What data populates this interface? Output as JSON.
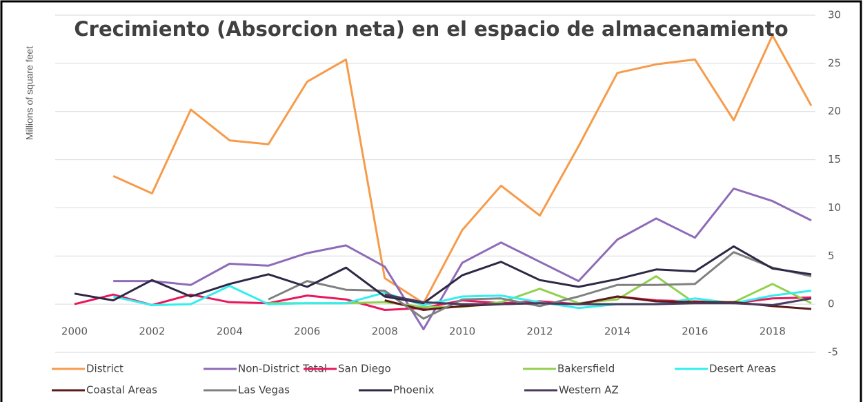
{
  "chart_data": {
    "type": "line",
    "title": "Crecimiento (Absorcion neta) en el espacio de almacenamiento",
    "y_label": "Millions of square feet",
    "x": [
      2000,
      2001,
      2002,
      2003,
      2004,
      2005,
      2006,
      2007,
      2008,
      2009,
      2010,
      2011,
      2012,
      2013,
      2014,
      2015,
      2016,
      2017,
      2018,
      2019
    ],
    "xlim": [
      2000,
      2019
    ],
    "xticks": [
      2000,
      2002,
      2004,
      2006,
      2008,
      2010,
      2012,
      2014,
      2016,
      2018
    ],
    "ylim": [
      -5,
      30
    ],
    "yticks": [
      -5,
      0,
      5,
      10,
      15,
      20,
      25,
      30
    ],
    "grid": true,
    "legend": "bottom",
    "series": [
      {
        "name": "District",
        "color": "#f79b4a",
        "values": [
          null,
          13.3,
          11.5,
          20.2,
          17.0,
          16.6,
          23.1,
          25.4,
          2.7,
          0.1,
          7.7,
          12.3,
          9.2,
          16.4,
          24.0,
          24.9,
          25.4,
          19.1,
          27.9,
          20.6
        ]
      },
      {
        "name": "Non-District Total",
        "color": "#8e6bb8",
        "values": [
          null,
          2.4,
          2.4,
          2.0,
          4.2,
          4.0,
          5.3,
          6.1,
          3.9,
          -2.6,
          4.3,
          6.4,
          4.4,
          2.4,
          6.7,
          8.9,
          6.9,
          12.0,
          10.7,
          8.7
        ]
      },
      {
        "name": "San Diego",
        "color": "#e8185c",
        "values": [
          0.0,
          1.0,
          -0.1,
          1.0,
          0.2,
          0.1,
          0.9,
          0.5,
          -0.6,
          -0.4,
          0.4,
          0.1,
          0.3,
          0.0,
          0.8,
          0.4,
          0.3,
          0.1,
          0.6,
          0.7
        ]
      },
      {
        "name": "Bakersfield",
        "color": "#92d050",
        "values": [
          null,
          null,
          null,
          null,
          null,
          0.1,
          0.1,
          0.1,
          0.2,
          -0.3,
          -0.3,
          0.2,
          1.6,
          0.1,
          0.5,
          2.9,
          0.1,
          0.2,
          2.1,
          0.1
        ]
      },
      {
        "name": "Desert Areas",
        "color": "#33eeee",
        "values": [
          null,
          0.8,
          -0.1,
          0.0,
          1.9,
          0.0,
          0.1,
          0.1,
          1.2,
          -0.1,
          0.8,
          0.9,
          0.2,
          -0.4,
          0.0,
          0.0,
          0.6,
          0.1,
          0.9,
          1.4
        ]
      },
      {
        "name": "Coastal Areas",
        "color": "#5c1a1a",
        "values": [
          null,
          null,
          null,
          null,
          null,
          null,
          null,
          null,
          0.4,
          -0.6,
          -0.2,
          0.0,
          0.1,
          0.0,
          0.8,
          0.3,
          0.2,
          0.2,
          -0.2,
          -0.5
        ]
      },
      {
        "name": "Las Vegas",
        "color": "#808080",
        "values": [
          null,
          null,
          null,
          null,
          null,
          0.5,
          2.4,
          1.5,
          1.4,
          -1.5,
          0.5,
          0.6,
          -0.2,
          0.8,
          2.0,
          2.0,
          2.1,
          5.4,
          3.8,
          2.9
        ]
      },
      {
        "name": "Phoenix",
        "color": "#2e2846",
        "values": [
          1.1,
          0.4,
          2.5,
          0.8,
          2.1,
          3.1,
          1.8,
          3.8,
          0.8,
          0.1,
          3.0,
          4.4,
          2.5,
          1.8,
          2.6,
          3.6,
          3.4,
          6.0,
          3.7,
          3.1
        ]
      },
      {
        "name": "Western AZ",
        "color": "#4a3a5e",
        "values": [
          null,
          null,
          null,
          null,
          null,
          null,
          null,
          null,
          1.0,
          0.2,
          0.0,
          0.0,
          0.1,
          0.0,
          0.0,
          0.0,
          0.1,
          0.1,
          -0.1,
          0.6
        ]
      }
    ]
  }
}
